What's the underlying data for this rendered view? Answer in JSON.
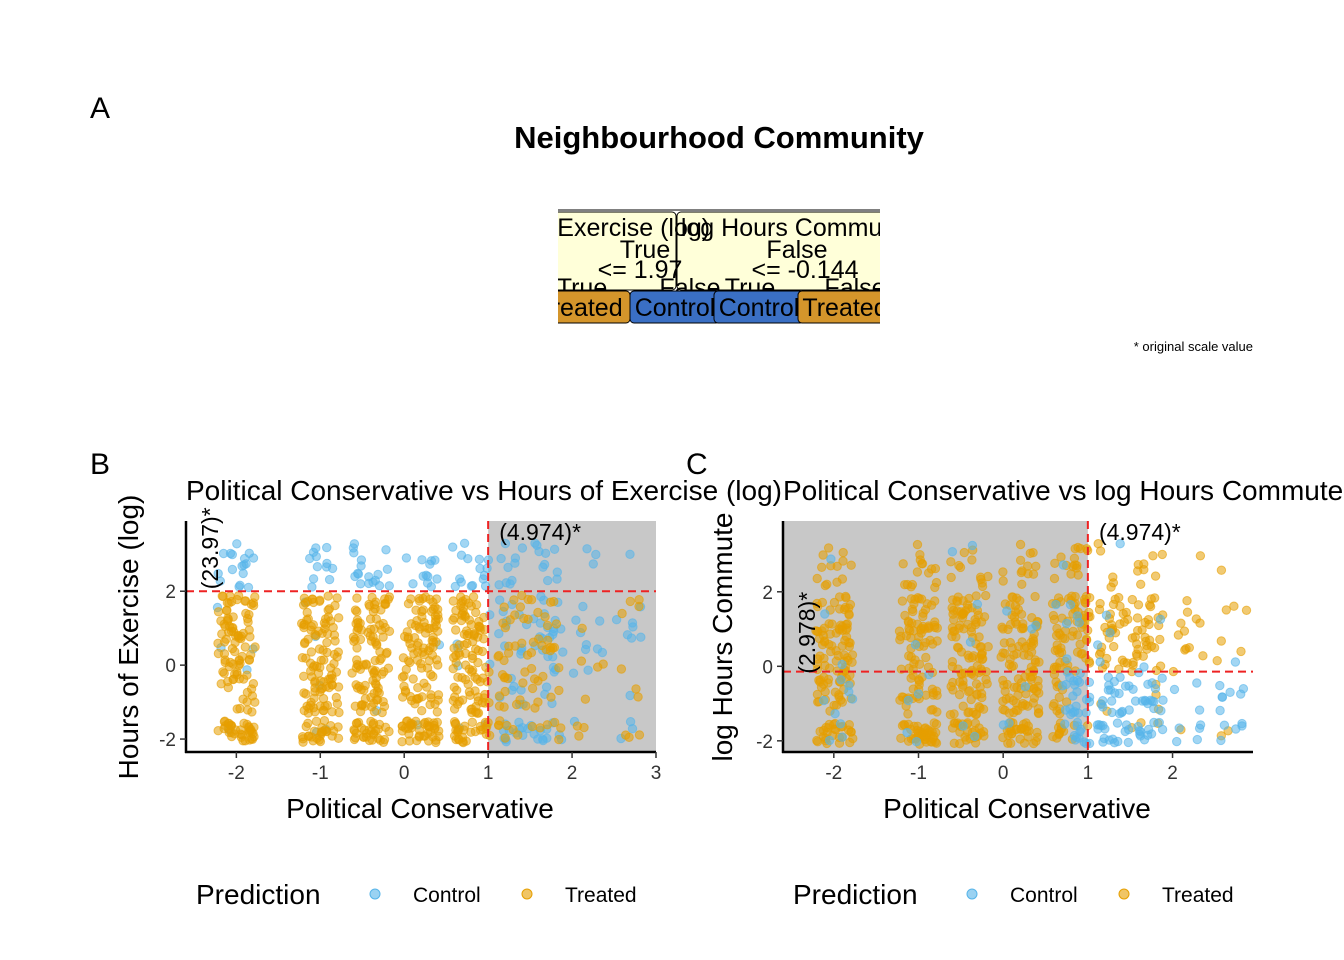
{
  "figure": {
    "title": "Neighbourhood Community",
    "footnote": "* original scale value",
    "panel_labels": [
      "A",
      "B",
      "C"
    ]
  },
  "tree": {
    "left_node": {
      "feature": "Hours of Exercise (log)",
      "value": "True",
      "rule": "<= 1.97"
    },
    "right_node": {
      "feature": "log Hours Commute",
      "value": "False",
      "rule": "<= -0.144"
    },
    "leaf_branch_labels": [
      "True",
      "False",
      "True",
      "False"
    ],
    "leaves": [
      "Treated",
      "Control",
      "Control",
      "Treated"
    ],
    "colors": {
      "node": "#ffffd9",
      "treated": "#d4952b",
      "control": "#3a6fc4"
    }
  },
  "legend": {
    "title": "Prediction",
    "items": [
      "Control",
      "Treated"
    ]
  },
  "colors": {
    "control": "#56b4e9",
    "treated": "#e69f00",
    "split": "#ee2222",
    "shade": "#c8c8c8"
  },
  "chart_data": [
    {
      "type": "scatter",
      "panel": "B",
      "title": "Political Conservative vs Hours of Exercise (log)",
      "xlabel": "Political Conservative",
      "ylabel": "Hours of Exercise (log)",
      "xlim": [
        -2.6,
        3.0
      ],
      "ylim": [
        -2.35,
        3.9
      ],
      "xticks": [
        -2,
        -1,
        0,
        1,
        2,
        3
      ],
      "yticks": [
        -2,
        0,
        2
      ],
      "split_x": 1.0,
      "split_y": 2.0,
      "split_x_label": "(4.974)*",
      "split_y_label": "(23.97)*",
      "shaded_region": {
        "x": [
          1.0,
          3.0
        ],
        "y": [
          -2.35,
          3.9
        ]
      },
      "x_clusters": [
        -2.0,
        -1.0,
        -0.4,
        0.2,
        0.8,
        1.3,
        1.7,
        2.2,
        2.7
      ],
      "y_bands": [
        [
          -2.1,
          -1.5
        ],
        [
          -1.3,
          1.9
        ],
        [
          2.1,
          3.3
        ]
      ],
      "series": [
        {
          "name": "Control",
          "region": "y above 2 or x above 1 (mixed)"
        },
        {
          "name": "Treated",
          "region": "y below 2"
        }
      ]
    },
    {
      "type": "scatter",
      "panel": "C",
      "title": "Political Conservative vs log Hours Commute",
      "xlabel": "Political Conservative",
      "ylabel": "log Hours Commute",
      "xlim": [
        -2.6,
        2.95
      ],
      "ylim": [
        -2.3,
        3.9
      ],
      "xticks": [
        -2,
        -1,
        0,
        1,
        2
      ],
      "yticks": [
        -2,
        0,
        2
      ],
      "split_x": 1.0,
      "split_y": -0.144,
      "split_x_label": "(4.974)*",
      "split_y_label": "(2.978)*",
      "shaded_region": {
        "x": [
          -2.6,
          1.0
        ],
        "y": [
          -2.3,
          3.9
        ]
      },
      "x_clusters": [
        -2.0,
        -1.0,
        -0.4,
        0.2,
        0.8,
        1.3,
        1.7,
        2.2,
        2.7
      ],
      "y_bands": [
        [
          -2.1,
          -1.5
        ],
        [
          -1.3,
          1.9
        ],
        [
          2.1,
          3.3
        ]
      ],
      "series": [
        {
          "name": "Control",
          "region": "x above 0.7 and y below -0.144"
        },
        {
          "name": "Treated",
          "region": "elsewhere"
        }
      ]
    }
  ]
}
